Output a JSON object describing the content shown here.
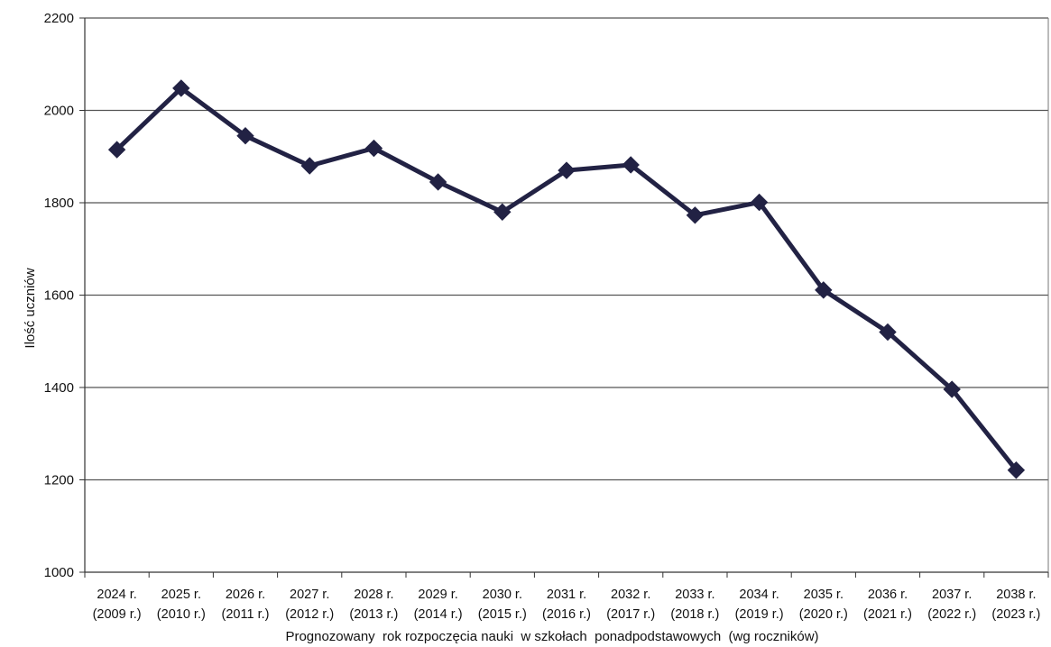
{
  "chart_data": {
    "type": "line",
    "title": "",
    "xlabel": "Prognozowany  rok rozpoczęcia nauki  w szkołach  ponadpodstawowych  (wg roczników)",
    "ylabel": "Ilość uczniów",
    "ylim": [
      1000,
      2200
    ],
    "yticks": [
      1000,
      1200,
      1400,
      1600,
      1800,
      2000,
      2200
    ],
    "grid": true,
    "legend": "none",
    "categories": [
      {
        "line1": "2024 r.",
        "line2": "(2009 r.)"
      },
      {
        "line1": "2025 r.",
        "line2": "(2010 r.)"
      },
      {
        "line1": "2026 r.",
        "line2": "(2011 r.)"
      },
      {
        "line1": "2027 r.",
        "line2": "(2012 r.)"
      },
      {
        "line1": "2028 r.",
        "line2": "(2013 r.)"
      },
      {
        "line1": "2029 r.",
        "line2": "(2014 r.)"
      },
      {
        "line1": "2030 r.",
        "line2": "(2015 r.)"
      },
      {
        "line1": "2031 r.",
        "line2": "(2016 r.)"
      },
      {
        "line1": "2032 r.",
        "line2": "(2017 r.)"
      },
      {
        "line1": "2033 r.",
        "line2": "(2018 r.)"
      },
      {
        "line1": "2034 r.",
        "line2": "(2019 r.)"
      },
      {
        "line1": "2035 r.",
        "line2": "(2020 r.)"
      },
      {
        "line1": "2036 r.",
        "line2": "(2021 r.)"
      },
      {
        "line1": "2037 r.",
        "line2": "(2022 r.)"
      },
      {
        "line1": "2038 r.",
        "line2": "(2023 r.)"
      }
    ],
    "series": [
      {
        "values": [
          1915,
          2048,
          1945,
          1880,
          1918,
          1845,
          1780,
          1870,
          1882,
          1773,
          1801,
          1611,
          1520,
          1396,
          1221
        ],
        "color": "#222244",
        "marker": "diamond"
      }
    ]
  }
}
